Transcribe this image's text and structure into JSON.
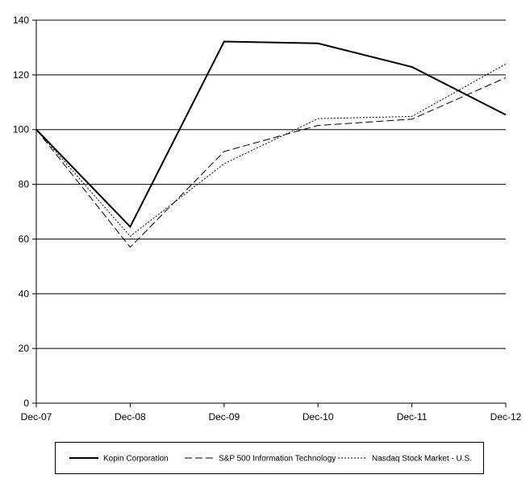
{
  "chart_data": {
    "type": "line",
    "title": "",
    "xlabel": "",
    "ylabel": "",
    "categories": [
      "Dec-07",
      "Dec-08",
      "Dec-09",
      "Dec-10",
      "Dec-11",
      "Dec-12"
    ],
    "ylim": [
      0,
      140
    ],
    "yticks": [
      0,
      20,
      40,
      60,
      80,
      100,
      120,
      140
    ],
    "grid": true,
    "legend_position": "bottom",
    "series": [
      {
        "name": "Kopin Corporation",
        "values": [
          100,
          64.5,
          132.2,
          131.5,
          122.9,
          105.4
        ],
        "style": "solid-thick",
        "color": "#000000"
      },
      {
        "name": "S&P 500 Information Technology",
        "values": [
          100,
          57.0,
          92.0,
          101.5,
          103.8,
          119.0
        ],
        "style": "dashed",
        "color": "#000000"
      },
      {
        "name": "Nasdaq Stock Market - U.S.",
        "values": [
          100,
          61.0,
          87.5,
          104.0,
          104.8,
          124.0
        ],
        "style": "dotted",
        "color": "#000000"
      }
    ]
  }
}
